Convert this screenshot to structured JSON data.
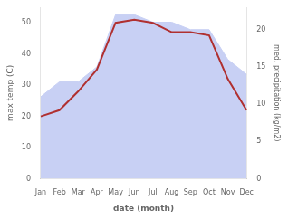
{
  "chart_data": {
    "type": "line",
    "categories": [
      "Jan",
      "Feb",
      "Mar",
      "Apr",
      "May",
      "Jun",
      "Jul",
      "Aug",
      "Sep",
      "Oct",
      "Nov",
      "Dec"
    ],
    "series": [
      {
        "type": "area",
        "color": "#c8d0f4",
        "axis": "y2",
        "values": [
          11,
          13,
          13,
          15,
          22,
          22,
          21,
          21,
          20,
          20,
          16,
          14
        ]
      },
      {
        "type": "line",
        "color": "#b03030",
        "axis": "y",
        "values": [
          20,
          22,
          28,
          35,
          50,
          51,
          50,
          47,
          47,
          46,
          32,
          22
        ]
      }
    ],
    "xlabel": "date (month)",
    "ylabel": "max temp (C)",
    "y2label": "med. precipitation (kg/m2)",
    "ylim": [
      0,
      55
    ],
    "yticks": [
      0,
      10,
      20,
      30,
      40,
      50
    ],
    "y2lim": [
      0,
      23
    ],
    "y2ticks": [
      0,
      5,
      10,
      15,
      20
    ],
    "grid": false
  }
}
